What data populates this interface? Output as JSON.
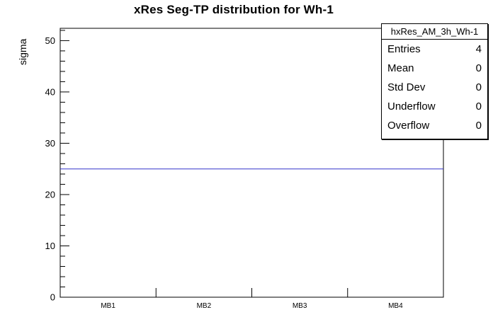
{
  "chart_data": {
    "type": "line",
    "title": "xRes Seg-TP distribution for Wh-1",
    "xlabel": "",
    "ylabel": "sigma",
    "categories": [
      "MB1",
      "MB2",
      "MB3",
      "MB4"
    ],
    "values": [
      25,
      25,
      25,
      25
    ],
    "ylim": [
      0,
      52.4
    ],
    "y_ticks": [
      0,
      10,
      20,
      30,
      40,
      50
    ],
    "y_minor_step": 2,
    "grid": false,
    "legend": false,
    "line_color": "#3333cc",
    "frame_color": "#000000"
  },
  "stats_box": {
    "title": "hxRes_AM_3h_Wh-1",
    "rows": [
      {
        "label": "Entries",
        "value": "4"
      },
      {
        "label": "Mean",
        "value": "0"
      },
      {
        "label": "Std Dev",
        "value": "0"
      },
      {
        "label": "Underflow",
        "value": "0"
      },
      {
        "label": "Overflow",
        "value": "0"
      }
    ]
  }
}
